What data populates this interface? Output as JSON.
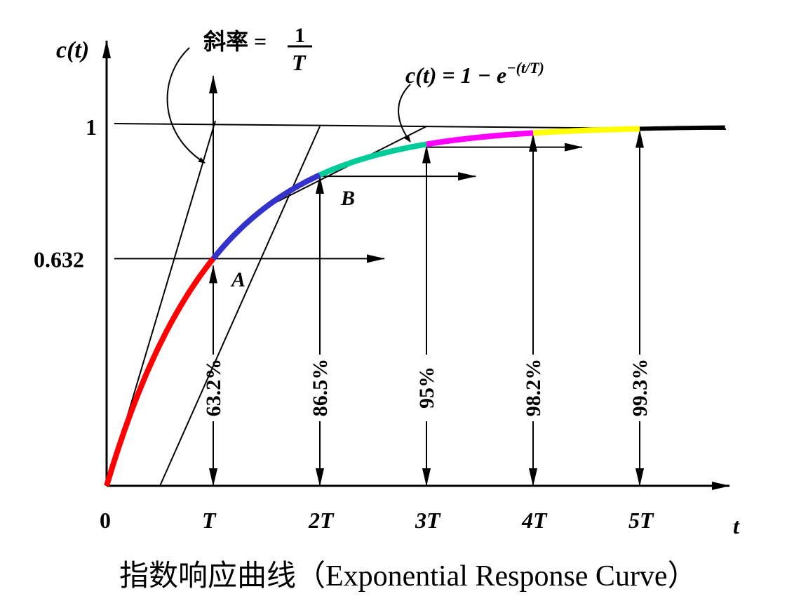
{
  "chart_data": {
    "type": "line",
    "function": "c(t) = 1 - e^(-t/T)",
    "ylabel": "c(t)",
    "xlabel": "t",
    "x_ticks": [
      "0",
      "T",
      "2T",
      "3T",
      "4T",
      "5T"
    ],
    "y_ticks": [
      "0.632",
      "1"
    ],
    "x": [
      1,
      2,
      3,
      4,
      5
    ],
    "values": [
      0.632,
      0.865,
      0.95,
      0.982,
      0.993
    ],
    "percent_labels": [
      "63.2%",
      "86.5%",
      "95%",
      "98.2%",
      "99.3%"
    ],
    "points": [
      {
        "label": "A"
      },
      {
        "label": "B"
      }
    ],
    "segment_colors": [
      "#ff0000",
      "#3333cc",
      "#00cc99",
      "#ff00ff",
      "#ffff00",
      "#000000"
    ],
    "annotations": {
      "slope_label": "斜率 =",
      "slope_num": "1",
      "slope_den": "T",
      "curve_label": "c(t) = 1 − e",
      "curve_exp": "−(t/T)"
    }
  },
  "caption": "指数响应曲线（Exponential Response Curve）"
}
